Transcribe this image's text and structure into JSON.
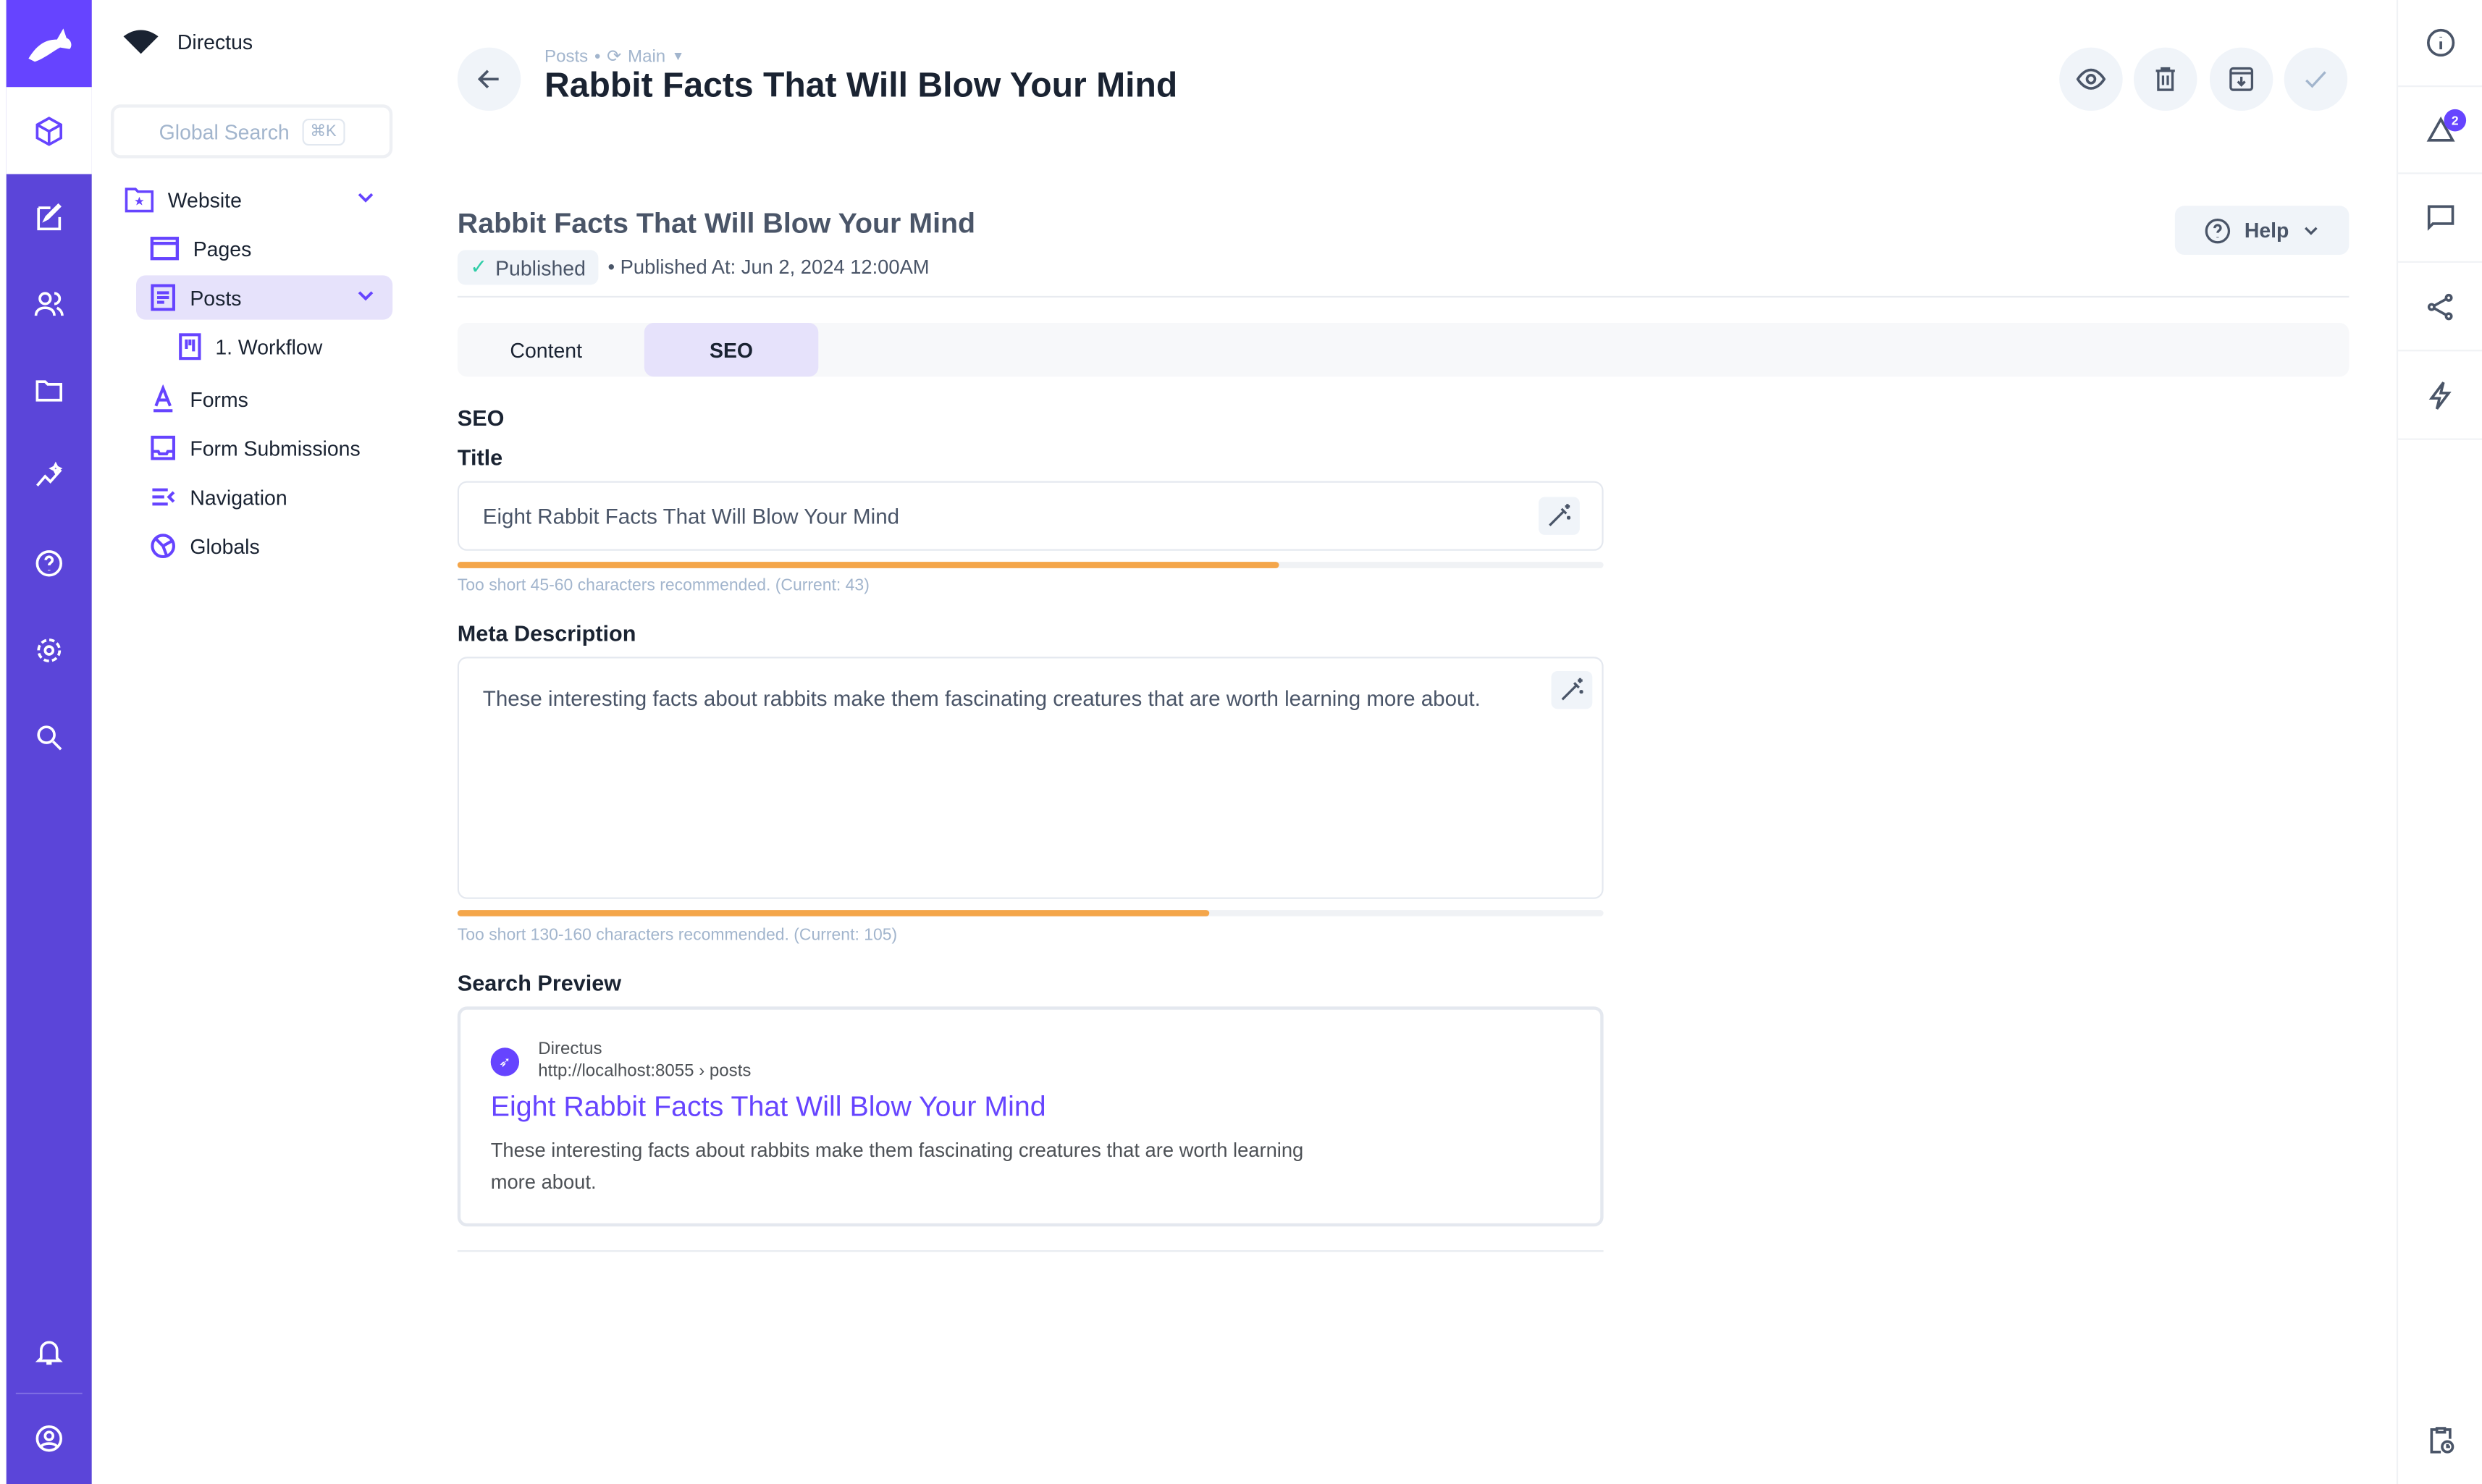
{
  "app": {
    "project_name": "Directus",
    "brand_color": "#6644ff"
  },
  "rail": {
    "icons": [
      "content-icon",
      "edit-icon",
      "users-icon",
      "folder-icon",
      "insights-icon",
      "help-icon",
      "settings-icon",
      "search-icon",
      "bell-icon",
      "user-icon"
    ]
  },
  "nav": {
    "search_placeholder": "Global Search",
    "search_shortcut": "⌘K",
    "items": [
      {
        "label": "Website"
      },
      {
        "label": "Pages"
      },
      {
        "label": "Posts"
      },
      {
        "label": "1. Workflow"
      },
      {
        "label": "Forms"
      },
      {
        "label": "Form Submissions"
      },
      {
        "label": "Navigation"
      },
      {
        "label": "Globals"
      }
    ]
  },
  "header": {
    "breadcrumb": "Posts",
    "version": "Main",
    "title": "Rabbit Facts That Will Blow Your Mind"
  },
  "item": {
    "title": "Rabbit Facts That Will Blow Your Mind",
    "status": "Published",
    "published_at": "• Published At: Jun 2, 2024 12:00AM",
    "help_label": "Help"
  },
  "tabs": [
    {
      "label": "Content",
      "active": false
    },
    {
      "label": "SEO",
      "active": true
    }
  ],
  "seo": {
    "section": "SEO",
    "title_label": "Title",
    "title_value": "Eight Rabbit Facts That Will Blow Your Mind",
    "title_length": 43,
    "title_max": 60,
    "title_hint": "Too short 45-60 characters recommended. (Current: 43)",
    "meta_label": "Meta Description",
    "meta_value": "These interesting facts about rabbits make them fascinating creatures that are worth learning more about.",
    "meta_length": 105,
    "meta_max": 160,
    "meta_hint": "Too short 130-160 characters recommended. (Current: 105)",
    "preview_label": "Search Preview",
    "preview": {
      "site": "Directus",
      "url": "http://localhost:8055 › posts",
      "title": "Eight Rabbit Facts That Will Blow Your Mind",
      "description": "These interesting facts about rabbits make them fascinating creatures that are worth learning more about."
    },
    "progress_color": "#f4a64a"
  },
  "sidebar": {
    "notifications_badge": "2"
  }
}
